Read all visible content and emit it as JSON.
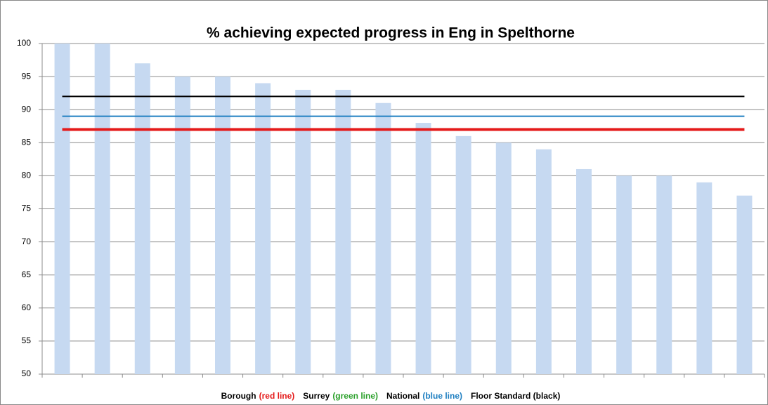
{
  "chart_data": {
    "type": "bar",
    "title": "% achieving expected progress in Eng in Spelthorne",
    "categories": [
      null,
      null,
      null,
      null,
      null,
      null,
      null,
      null,
      null,
      null,
      null,
      null,
      null,
      null,
      null,
      null,
      null,
      null
    ],
    "values": [
      100,
      100,
      97,
      95,
      95,
      94,
      93,
      93,
      91,
      88,
      86,
      85,
      84,
      81,
      80,
      80,
      79,
      77
    ],
    "color": "#c6d9f1",
    "ylim": [
      50,
      100
    ],
    "yticks": [
      50,
      55,
      60,
      65,
      70,
      75,
      80,
      85,
      90,
      95,
      100
    ],
    "grid": true,
    "lines": [
      {
        "value": 92,
        "color": "#000000",
        "width": 2
      },
      {
        "value": 89,
        "color": "#1f7fc1",
        "width": 2
      },
      {
        "value": 87,
        "color": "#e41a1a",
        "width": 4
      }
    ],
    "legend": [
      {
        "text": "Borough",
        "color": "#000000"
      },
      {
        "text": "(red line)",
        "color": "#e41a1a"
      },
      {
        "text": "Surrey",
        "color": "#000000"
      },
      {
        "text": "(green line)",
        "color": "#2aa02a"
      },
      {
        "text": "National",
        "color": "#000000"
      },
      {
        "text": "(blue line)",
        "color": "#1f7fc1"
      },
      {
        "text": "Floor Standard  (black)",
        "color": "#000000"
      }
    ]
  }
}
